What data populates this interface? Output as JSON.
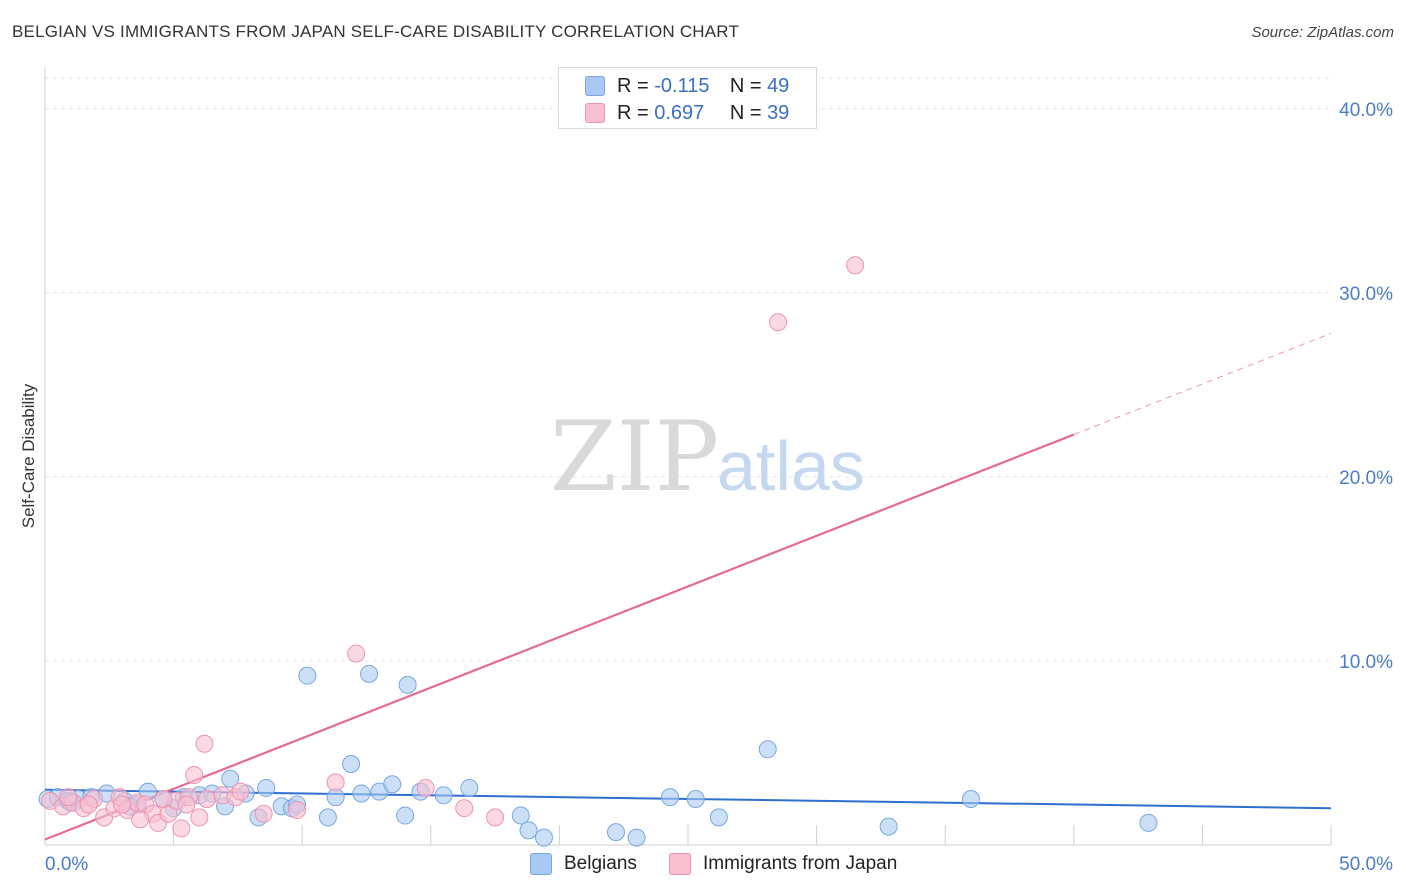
{
  "title": "BELGIAN VS IMMIGRANTS FROM JAPAN SELF-CARE DISABILITY CORRELATION CHART",
  "source": "Source: ZipAtlas.com",
  "watermark": {
    "zip": "ZIP",
    "atlas": "atlas"
  },
  "legend": {
    "r_label": "R =",
    "n_label": "N =",
    "series": [
      {
        "name": "Belgians",
        "r": "-0.115",
        "n": "49",
        "fill": "#a9c9f2",
        "stroke": "#7aa7e0"
      },
      {
        "name": "Immigrants from Japan",
        "r": "0.697",
        "n": "39",
        "fill": "#f8bfd0",
        "stroke": "#ec93b1"
      }
    ]
  },
  "chart_data": {
    "type": "scatter",
    "title": "BELGIAN VS IMMIGRANTS FROM JAPAN SELF-CARE DISABILITY CORRELATION CHART",
    "xlabel": "",
    "ylabel": "Self-Care Disability",
    "xlim": [
      0,
      50
    ],
    "ylim": [
      0,
      42
    ],
    "x_tick_labels": [
      {
        "value": 0,
        "label": "0.0%"
      },
      {
        "value": 50,
        "label": "50.0%"
      }
    ],
    "y_tick_labels": [
      {
        "value": 10,
        "label": "10.0%"
      },
      {
        "value": 20,
        "label": "20.0%"
      },
      {
        "value": 30,
        "label": "30.0%"
      },
      {
        "value": 40,
        "label": "40.0%"
      }
    ],
    "x_minor_ticks": [
      5,
      10,
      15,
      20,
      25,
      30,
      35,
      40,
      45
    ],
    "series": [
      {
        "name": "Belgians",
        "color": "#a9c9f2",
        "stroke": "#7aa7e0",
        "line_color": "#2f6fcf",
        "trend": {
          "x0": 0,
          "y0": 3.0,
          "x1": 50,
          "y1": 2.0,
          "dashed_from": null
        },
        "points": [
          [
            0.1,
            2.5
          ],
          [
            0.5,
            2.6
          ],
          [
            0.9,
            2.4
          ],
          [
            1.3,
            2.5
          ],
          [
            1.8,
            2.6
          ],
          [
            2.4,
            2.8
          ],
          [
            3.1,
            2.4
          ],
          [
            3.6,
            2.2
          ],
          [
            4.0,
            2.9
          ],
          [
            4.6,
            2.5
          ],
          [
            5.0,
            2.0
          ],
          [
            5.4,
            2.6
          ],
          [
            6.0,
            2.7
          ],
          [
            6.5,
            2.8
          ],
          [
            7.0,
            2.1
          ],
          [
            7.2,
            3.6
          ],
          [
            7.8,
            2.8
          ],
          [
            8.3,
            1.5
          ],
          [
            8.6,
            3.1
          ],
          [
            9.2,
            2.1
          ],
          [
            9.6,
            2.0
          ],
          [
            9.8,
            2.2
          ],
          [
            10.2,
            9.2
          ],
          [
            11.0,
            1.5
          ],
          [
            11.3,
            2.6
          ],
          [
            11.9,
            4.4
          ],
          [
            12.3,
            2.8
          ],
          [
            12.6,
            9.3
          ],
          [
            13.0,
            2.9
          ],
          [
            13.5,
            3.3
          ],
          [
            14.0,
            1.6
          ],
          [
            14.1,
            8.7
          ],
          [
            14.6,
            2.9
          ],
          [
            15.5,
            2.7
          ],
          [
            16.5,
            3.1
          ],
          [
            18.5,
            1.6
          ],
          [
            18.8,
            0.8
          ],
          [
            19.4,
            0.4
          ],
          [
            22.2,
            0.7
          ],
          [
            23.0,
            0.4
          ],
          [
            24.3,
            2.6
          ],
          [
            25.3,
            2.5
          ],
          [
            26.2,
            1.5
          ],
          [
            28.1,
            5.2
          ],
          [
            32.8,
            1.0
          ],
          [
            36.0,
            2.5
          ],
          [
            42.9,
            1.2
          ],
          [
            1.0,
            2.3
          ],
          [
            3.3,
            2.1
          ]
        ]
      },
      {
        "name": "Immigrants from Japan",
        "color": "#f8bfd0",
        "stroke": "#ec93b1",
        "line_color": "#e46a95",
        "trend": {
          "x0": 0,
          "y0": 0.3,
          "x1": 50,
          "y1": 27.8,
          "dashed_from": 40
        },
        "points": [
          [
            0.2,
            2.4
          ],
          [
            0.7,
            2.1
          ],
          [
            1.1,
            2.3
          ],
          [
            1.5,
            2.0
          ],
          [
            1.9,
            2.5
          ],
          [
            2.3,
            1.5
          ],
          [
            2.7,
            2.0
          ],
          [
            2.9,
            2.6
          ],
          [
            3.2,
            1.9
          ],
          [
            3.6,
            2.3
          ],
          [
            3.9,
            2.2
          ],
          [
            4.2,
            1.7
          ],
          [
            4.4,
            1.2
          ],
          [
            4.8,
            1.7
          ],
          [
            5.1,
            2.4
          ],
          [
            5.6,
            2.6
          ],
          [
            5.3,
            0.9
          ],
          [
            5.8,
            3.8
          ],
          [
            6.0,
            1.5
          ],
          [
            6.2,
            5.5
          ],
          [
            6.3,
            2.5
          ],
          [
            6.9,
            2.7
          ],
          [
            7.4,
            2.6
          ],
          [
            8.5,
            1.7
          ],
          [
            9.8,
            1.9
          ],
          [
            11.3,
            3.4
          ],
          [
            12.1,
            10.4
          ],
          [
            14.8,
            3.1
          ],
          [
            17.5,
            1.5
          ],
          [
            28.5,
            28.4
          ],
          [
            31.5,
            31.5
          ],
          [
            0.9,
            2.6
          ],
          [
            1.7,
            2.2
          ],
          [
            3.0,
            2.2
          ],
          [
            3.7,
            1.4
          ],
          [
            7.6,
            2.9
          ],
          [
            16.3,
            2.0
          ],
          [
            4.6,
            2.5
          ],
          [
            5.5,
            2.2
          ]
        ]
      }
    ]
  }
}
